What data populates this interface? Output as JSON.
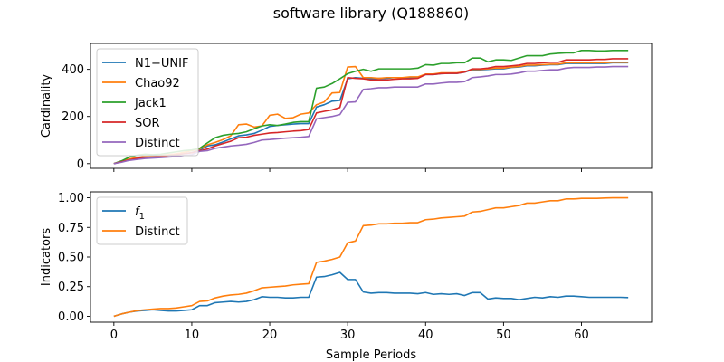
{
  "figure": {
    "title": "software library (Q188860)",
    "xlabel": "Sample Periods"
  },
  "chart_data": [
    {
      "type": "line",
      "ylabel": "Cardinality",
      "xlim": [
        -3,
        69
      ],
      "ylim": [
        -20,
        510
      ],
      "xticks": [
        0,
        10,
        20,
        30,
        40,
        50,
        60
      ],
      "yticks": [
        0,
        200,
        400
      ],
      "xtick_labels_visible": false,
      "legend": "upper left",
      "series": [
        {
          "name": "N1−UNIF",
          "color": "#1f77b4",
          "x": [
            0,
            1,
            2,
            3,
            4,
            5,
            6,
            7,
            8,
            9,
            10,
            11,
            12,
            13,
            14,
            15,
            16,
            17,
            18,
            19,
            20,
            21,
            22,
            23,
            24,
            25,
            26,
            27,
            28,
            29,
            30,
            31,
            32,
            33,
            34,
            35,
            36,
            37,
            38,
            39,
            40,
            41,
            42,
            43,
            44,
            45,
            46,
            47,
            48,
            49,
            50,
            51,
            52,
            53,
            54,
            55,
            56,
            57,
            58,
            59,
            60,
            61,
            62,
            63,
            64,
            65,
            66
          ],
          "values": [
            0,
            8,
            17,
            24,
            28,
            30,
            32,
            35,
            38,
            42,
            47,
            57,
            75,
            80,
            92,
            105,
            118,
            122,
            128,
            142,
            158,
            162,
            165,
            168,
            170,
            170,
            240,
            250,
            265,
            268,
            360,
            365,
            362,
            360,
            362,
            362,
            365,
            365,
            365,
            365,
            378,
            378,
            382,
            383,
            383,
            388,
            398,
            398,
            400,
            402,
            402,
            408,
            410,
            415,
            415,
            418,
            420,
            420,
            425,
            425,
            425,
            425,
            425,
            425,
            428,
            428,
            428
          ]
        },
        {
          "name": "Chao92",
          "color": "#ff7f0e",
          "x": [
            0,
            1,
            2,
            3,
            4,
            5,
            6,
            7,
            8,
            9,
            10,
            11,
            12,
            13,
            14,
            15,
            16,
            17,
            18,
            19,
            20,
            21,
            22,
            23,
            24,
            25,
            26,
            27,
            28,
            29,
            30,
            31,
            32,
            33,
            34,
            35,
            36,
            37,
            38,
            39,
            40,
            41,
            42,
            43,
            44,
            45,
            46,
            47,
            48,
            49,
            50,
            51,
            52,
            53,
            54,
            55,
            56,
            57,
            58,
            59,
            60,
            61,
            62,
            63,
            64,
            65,
            66
          ],
          "values": [
            0,
            10,
            20,
            26,
            30,
            32,
            34,
            38,
            42,
            48,
            55,
            62,
            80,
            90,
            102,
            118,
            165,
            168,
            155,
            160,
            205,
            210,
            192,
            195,
            210,
            215,
            250,
            262,
            300,
            302,
            410,
            412,
            365,
            365,
            362,
            365,
            365,
            365,
            368,
            368,
            380,
            380,
            385,
            385,
            385,
            390,
            400,
            400,
            402,
            405,
            405,
            410,
            412,
            418,
            418,
            420,
            422,
            422,
            428,
            428,
            428,
            428,
            428,
            428,
            430,
            430,
            430
          ]
        },
        {
          "name": "Jack1",
          "color": "#2ca02c",
          "x": [
            0,
            1,
            2,
            3,
            4,
            5,
            6,
            7,
            8,
            9,
            10,
            11,
            12,
            13,
            14,
            15,
            16,
            17,
            18,
            19,
            20,
            21,
            22,
            23,
            24,
            25,
            26,
            27,
            28,
            29,
            30,
            31,
            32,
            33,
            34,
            35,
            36,
            37,
            38,
            39,
            40,
            41,
            42,
            43,
            44,
            45,
            46,
            47,
            48,
            49,
            50,
            51,
            52,
            53,
            54,
            55,
            56,
            57,
            58,
            59,
            60,
            61,
            62,
            63,
            64,
            65,
            66
          ],
          "values": [
            0,
            12,
            28,
            36,
            40,
            38,
            40,
            45,
            50,
            55,
            58,
            65,
            88,
            110,
            120,
            125,
            128,
            135,
            148,
            160,
            165,
            162,
            168,
            175,
            178,
            178,
            320,
            325,
            340,
            360,
            382,
            392,
            400,
            392,
            402,
            402,
            402,
            402,
            402,
            405,
            420,
            418,
            425,
            425,
            428,
            428,
            448,
            448,
            432,
            440,
            440,
            438,
            448,
            458,
            458,
            458,
            465,
            468,
            470,
            470,
            480,
            480,
            478,
            478,
            480,
            480,
            480
          ]
        },
        {
          "name": "SOR",
          "color": "#d62728",
          "x": [
            0,
            1,
            2,
            3,
            4,
            5,
            6,
            7,
            8,
            9,
            10,
            11,
            12,
            13,
            14,
            15,
            16,
            17,
            18,
            19,
            20,
            21,
            22,
            23,
            24,
            25,
            26,
            27,
            28,
            29,
            30,
            31,
            32,
            33,
            34,
            35,
            36,
            37,
            38,
            39,
            40,
            41,
            42,
            43,
            44,
            45,
            46,
            47,
            48,
            49,
            50,
            51,
            52,
            53,
            54,
            55,
            56,
            57,
            58,
            59,
            60,
            61,
            62,
            63,
            64,
            65,
            66
          ],
          "values": [
            0,
            8,
            16,
            22,
            26,
            28,
            30,
            34,
            38,
            42,
            46,
            54,
            62,
            75,
            85,
            95,
            110,
            112,
            120,
            125,
            130,
            132,
            135,
            138,
            140,
            145,
            215,
            222,
            228,
            238,
            365,
            362,
            360,
            355,
            355,
            355,
            358,
            360,
            360,
            362,
            378,
            378,
            382,
            383,
            383,
            388,
            402,
            402,
            405,
            412,
            412,
            415,
            418,
            425,
            425,
            428,
            430,
            430,
            440,
            440,
            440,
            440,
            442,
            442,
            445,
            445,
            445
          ]
        },
        {
          "name": "Distinct",
          "color": "#9467bd",
          "x": [
            0,
            1,
            2,
            3,
            4,
            5,
            6,
            7,
            8,
            9,
            10,
            11,
            12,
            13,
            14,
            15,
            16,
            17,
            18,
            19,
            20,
            21,
            22,
            23,
            24,
            25,
            26,
            27,
            28,
            29,
            30,
            31,
            32,
            33,
            34,
            35,
            36,
            37,
            38,
            39,
            40,
            41,
            42,
            43,
            44,
            45,
            46,
            47,
            48,
            49,
            50,
            51,
            52,
            53,
            54,
            55,
            56,
            57,
            58,
            59,
            60,
            61,
            62,
            63,
            64,
            65,
            66
          ],
          "values": [
            0,
            6,
            14,
            18,
            22,
            24,
            26,
            28,
            30,
            35,
            38,
            52,
            55,
            65,
            70,
            75,
            78,
            82,
            90,
            100,
            102,
            105,
            108,
            110,
            112,
            115,
            190,
            195,
            200,
            208,
            260,
            262,
            315,
            318,
            322,
            322,
            325,
            325,
            325,
            325,
            338,
            338,
            342,
            345,
            345,
            348,
            365,
            368,
            372,
            378,
            378,
            380,
            385,
            392,
            392,
            395,
            398,
            398,
            405,
            408,
            408,
            408,
            410,
            410,
            412,
            412,
            412
          ]
        }
      ]
    },
    {
      "type": "line",
      "ylabel": "Indicators",
      "xlim": [
        -3,
        69
      ],
      "ylim": [
        -0.05,
        1.05
      ],
      "xticks": [
        0,
        10,
        20,
        30,
        40,
        50,
        60
      ],
      "yticks": [
        0.0,
        0.25,
        0.5,
        0.75,
        1.0
      ],
      "ytick_labels": [
        "0.00",
        "0.25",
        "0.50",
        "0.75",
        "1.00"
      ],
      "legend": "upper left",
      "series": [
        {
          "name": "f1",
          "name_base": "f",
          "name_sub": "1",
          "color": "#1f77b4",
          "x": [
            0,
            1,
            2,
            3,
            4,
            5,
            6,
            7,
            8,
            9,
            10,
            11,
            12,
            13,
            14,
            15,
            16,
            17,
            18,
            19,
            20,
            21,
            22,
            23,
            24,
            25,
            26,
            27,
            28,
            29,
            30,
            31,
            32,
            33,
            34,
            35,
            36,
            37,
            38,
            39,
            40,
            41,
            42,
            43,
            44,
            45,
            46,
            47,
            48,
            49,
            50,
            51,
            52,
            53,
            54,
            55,
            56,
            57,
            58,
            59,
            60,
            61,
            62,
            63,
            64,
            65,
            66
          ],
          "values": [
            0.0,
            0.02,
            0.035,
            0.045,
            0.05,
            0.055,
            0.05,
            0.045,
            0.045,
            0.05,
            0.055,
            0.09,
            0.09,
            0.115,
            0.12,
            0.125,
            0.12,
            0.125,
            0.14,
            0.165,
            0.16,
            0.16,
            0.155,
            0.155,
            0.16,
            0.16,
            0.33,
            0.335,
            0.35,
            0.37,
            0.31,
            0.31,
            0.205,
            0.195,
            0.2,
            0.2,
            0.195,
            0.195,
            0.195,
            0.19,
            0.2,
            0.185,
            0.19,
            0.185,
            0.19,
            0.175,
            0.2,
            0.2,
            0.145,
            0.155,
            0.15,
            0.15,
            0.14,
            0.15,
            0.16,
            0.155,
            0.165,
            0.16,
            0.17,
            0.17,
            0.165,
            0.16,
            0.16,
            0.16,
            0.16,
            0.16,
            0.158
          ]
        },
        {
          "name": "Distinct",
          "color": "#ff7f0e",
          "x": [
            0,
            1,
            2,
            3,
            4,
            5,
            6,
            7,
            8,
            9,
            10,
            11,
            12,
            13,
            14,
            15,
            16,
            17,
            18,
            19,
            20,
            21,
            22,
            23,
            24,
            25,
            26,
            27,
            28,
            29,
            30,
            31,
            32,
            33,
            34,
            35,
            36,
            37,
            38,
            39,
            40,
            41,
            42,
            43,
            44,
            45,
            46,
            47,
            48,
            49,
            50,
            51,
            52,
            53,
            54,
            55,
            56,
            57,
            58,
            59,
            60,
            61,
            62,
            63,
            64,
            65,
            66
          ],
          "values": [
            0.0,
            0.02,
            0.035,
            0.048,
            0.055,
            0.06,
            0.065,
            0.065,
            0.07,
            0.08,
            0.09,
            0.125,
            0.13,
            0.155,
            0.17,
            0.18,
            0.185,
            0.195,
            0.215,
            0.24,
            0.245,
            0.25,
            0.255,
            0.265,
            0.27,
            0.275,
            0.455,
            0.465,
            0.48,
            0.5,
            0.62,
            0.635,
            0.765,
            0.77,
            0.78,
            0.78,
            0.785,
            0.785,
            0.79,
            0.79,
            0.815,
            0.82,
            0.83,
            0.835,
            0.84,
            0.845,
            0.88,
            0.885,
            0.9,
            0.915,
            0.915,
            0.925,
            0.935,
            0.955,
            0.955,
            0.965,
            0.975,
            0.975,
            0.99,
            0.99,
            0.995,
            0.995,
            0.995,
            0.998,
            1.0,
            1.0,
            1.0
          ]
        }
      ]
    }
  ]
}
